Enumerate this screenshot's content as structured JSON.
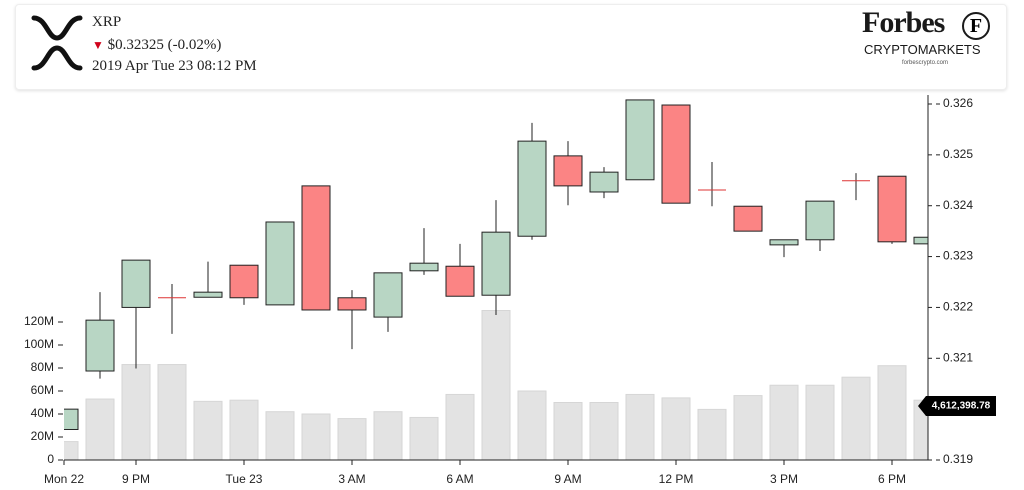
{
  "header": {
    "symbol": "XRP",
    "price": "$0.32325 (-0.02%)",
    "datetime": "2019 Apr Tue 23 08:12 PM",
    "brand": "Forbes",
    "brand_icon": "F",
    "brand_sub": "CRYPTOMARKETS",
    "brand_url": "forbescrypto.com"
  },
  "chart_data": {
    "type": "candlestick",
    "categories": [
      "Mon 22",
      null,
      "9 PM",
      null,
      null,
      "Tue 23",
      null,
      null,
      "3 AM",
      null,
      null,
      "6 AM",
      null,
      null,
      "9 AM",
      null,
      null,
      "12 PM",
      null,
      null,
      "3 PM",
      null,
      null,
      "6 PM",
      null
    ],
    "open": [
      0.3196,
      0.32075,
      0.322,
      0.32219,
      0.3222,
      0.32283,
      0.32205,
      0.32439,
      0.32219,
      0.32181,
      0.32272,
      0.32281,
      0.32224,
      0.3234,
      0.32498,
      0.32427,
      0.32451,
      0.32598,
      0.32431,
      0.32399,
      0.32323,
      0.32333,
      0.32449,
      0.32458,
      0.32325
    ],
    "high": [
      0.32,
      0.3223,
      0.32293,
      0.32246,
      0.3229,
      0.32283,
      0.32368,
      0.32439,
      0.32234,
      0.32268,
      0.32356,
      0.32325,
      0.32411,
      0.32563,
      0.32527,
      0.32476,
      0.32608,
      0.32598,
      0.32486,
      0.32399,
      0.32333,
      0.32409,
      0.32464,
      0.32458,
      0.32338
    ],
    "low": [
      0.3196,
      0.3206,
      0.3208,
      0.32148,
      0.3222,
      0.32205,
      0.32205,
      0.32195,
      0.32118,
      0.32152,
      0.32264,
      0.32222,
      0.32185,
      0.32333,
      0.32401,
      0.32415,
      0.32451,
      0.32405,
      0.32399,
      0.3235,
      0.32299,
      0.32311,
      0.32411,
      0.32325,
      0.32313
    ],
    "close": [
      0.32,
      0.32175,
      0.32293,
      0.32219,
      0.3223,
      0.32219,
      0.32368,
      0.32195,
      0.32195,
      0.32268,
      0.32287,
      0.32222,
      0.32348,
      0.32527,
      0.32439,
      0.32466,
      0.32608,
      0.32405,
      0.32431,
      0.3235,
      0.32333,
      0.32409,
      0.32449,
      0.32329,
      0.32338
    ],
    "volume": [
      16000000,
      53000000,
      83000000,
      83000000,
      51000000,
      52000000,
      42000000,
      40000000,
      36000000,
      42000000,
      37000000,
      57000000,
      130000000,
      60000000,
      50000000,
      50000000,
      57000000,
      54000000,
      44000000,
      56000000,
      65000000,
      65000000,
      72000000,
      82000000,
      52000000
    ],
    "up_color": "#b8d6c4",
    "down_color": "#fb8484",
    "volume_color": "#e3e3e3",
    "ylim": [
      0.319,
      0.326
    ],
    "yticks": [
      0.319,
      0.321,
      0.322,
      0.323,
      0.324,
      0.325,
      0.326
    ],
    "y2lim": [
      0,
      120000000
    ],
    "y2ticks": [
      0,
      {
        "value": 20000000,
        "label": "20M"
      },
      {
        "value": 40000000,
        "label": "40M"
      },
      {
        "value": 60000000,
        "label": "60M"
      },
      {
        "value": 80000000,
        "label": "80M"
      },
      {
        "value": 100000000,
        "label": "100M"
      },
      {
        "value": 120000000,
        "label": "120M"
      }
    ],
    "volume_badge": "4,612,398.78"
  }
}
